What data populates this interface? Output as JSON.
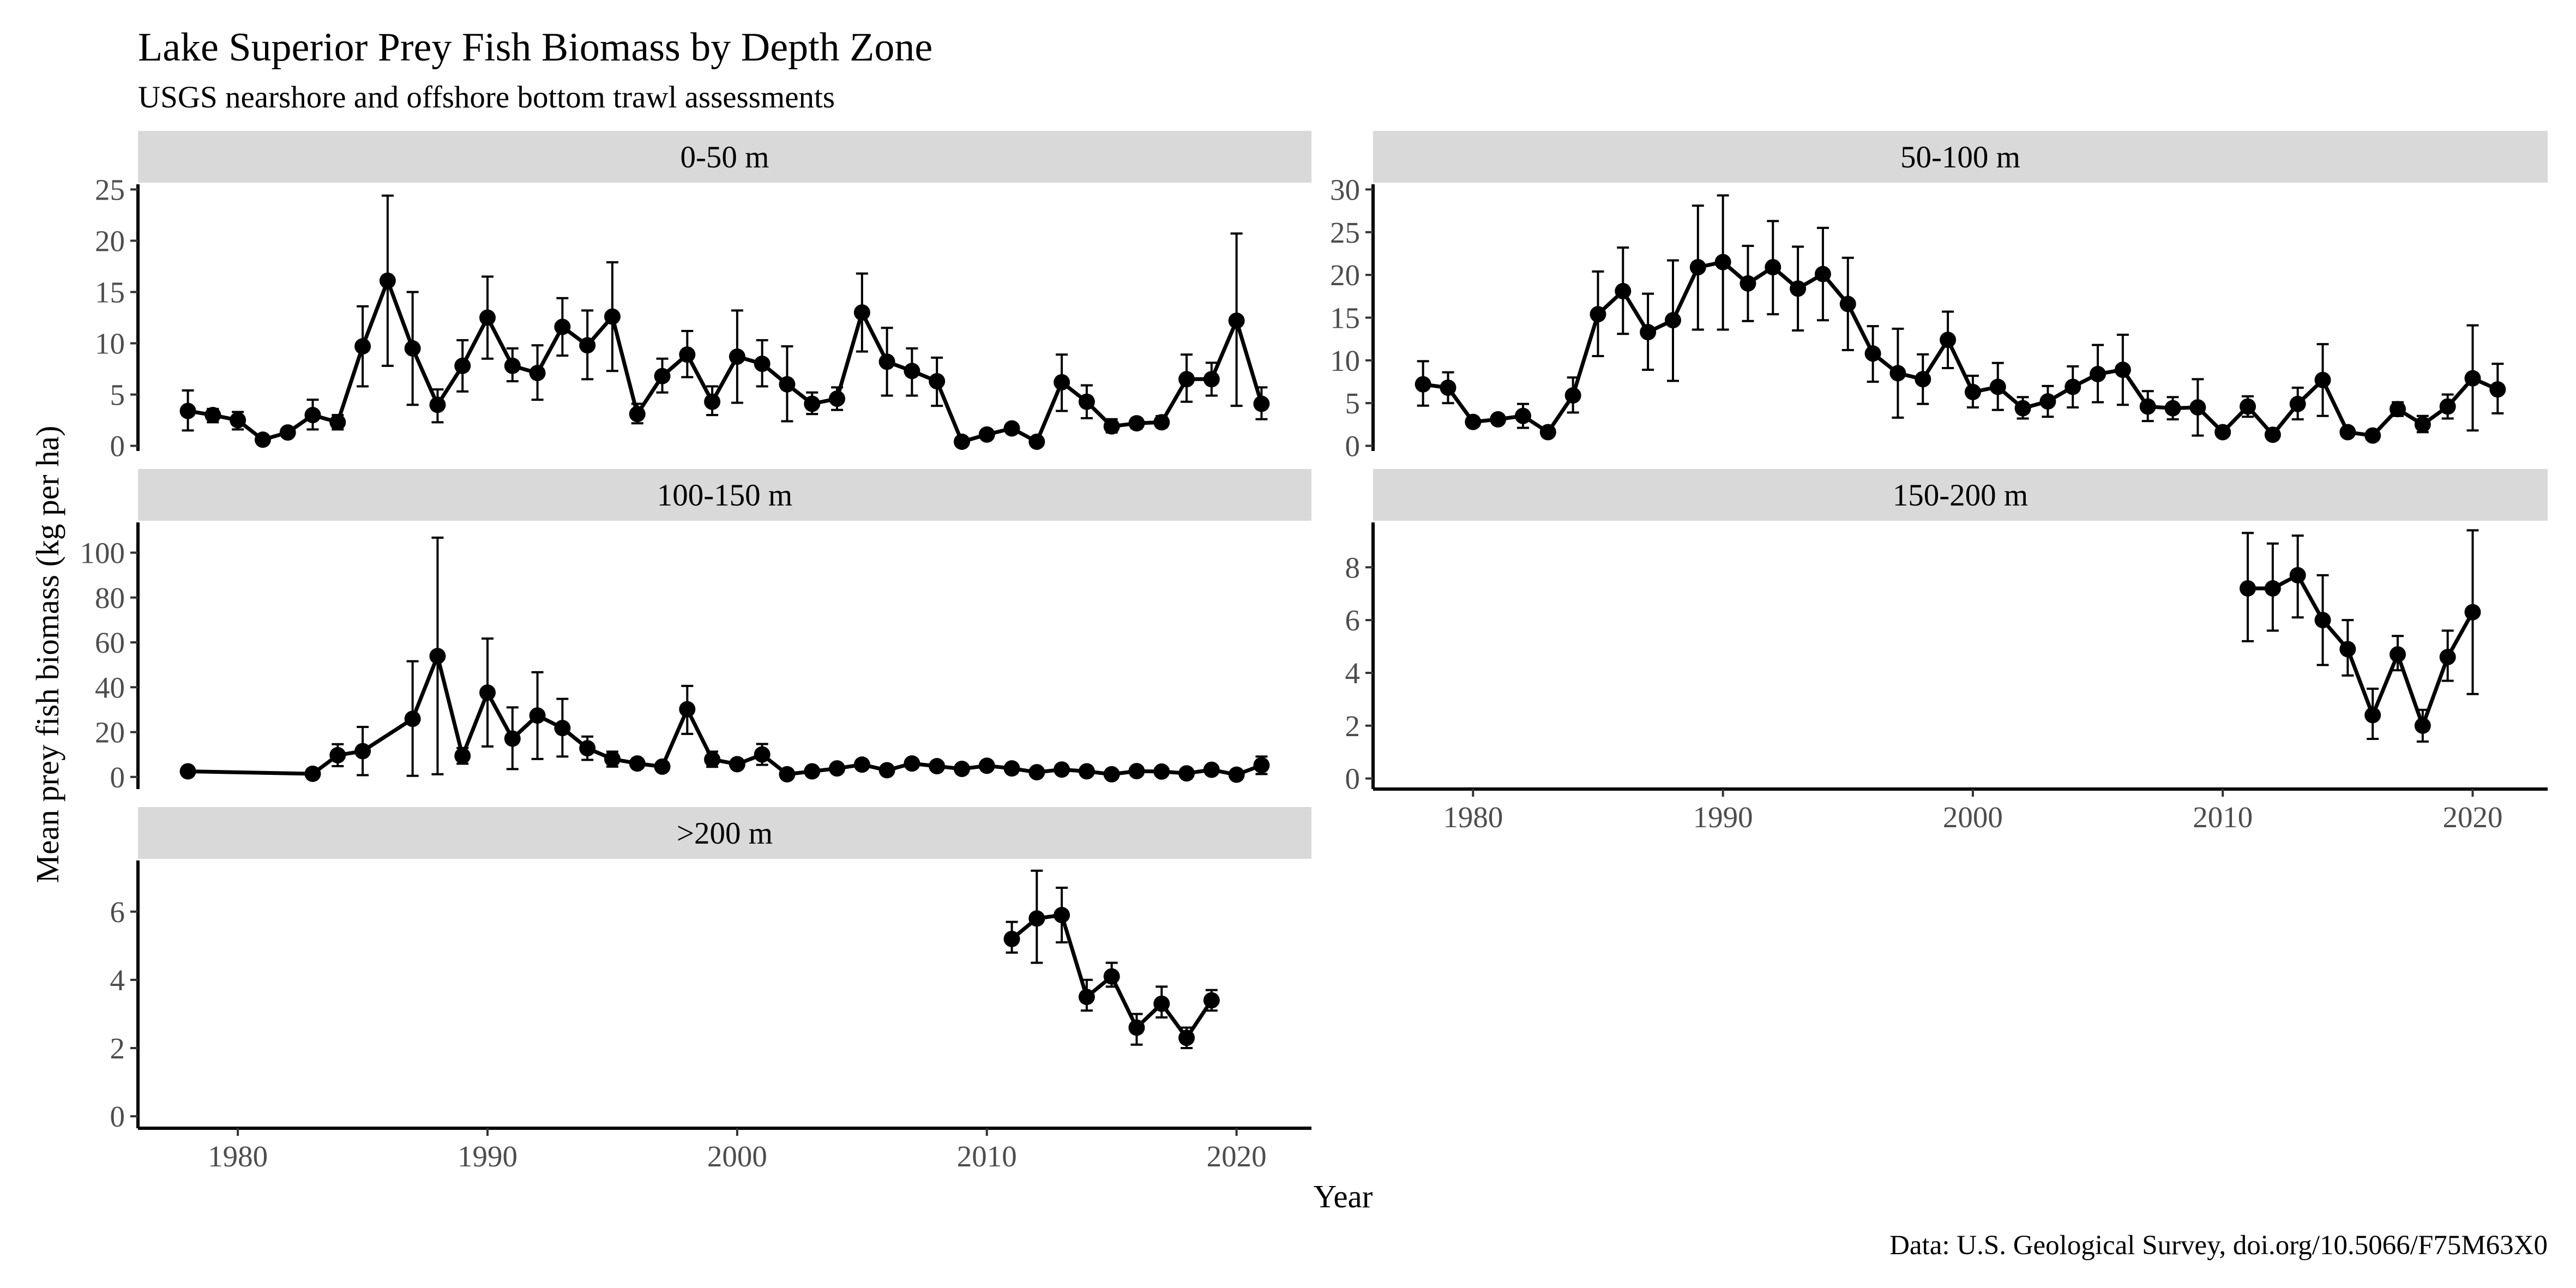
{
  "chart_data": {
    "type": "line",
    "title": "Lake Superior Prey Fish Biomass by Depth Zone",
    "subtitle": "USGS nearshore and offshore bottom trawl assessments",
    "xlabel": "Year",
    "ylabel": "Mean prey fish biomass (kg per ha)",
    "caption": "Data: U.S. Geological Survey, doi.org/10.5066/F75M63X0",
    "xlim": [
      1976,
      2023
    ],
    "x_ticks": [
      1980,
      1990,
      2000,
      2010,
      2020
    ],
    "legend": "none",
    "grid": false,
    "facets": [
      {
        "label": "0-50 m",
        "ylim": [
          -0.5,
          25.5
        ],
        "y_ticks": [
          0,
          5,
          10,
          15,
          20,
          25
        ],
        "points": [
          {
            "x": 1978,
            "y": 3.4,
            "lo": 1.5,
            "hi": 5.4
          },
          {
            "x": 1979,
            "y": 3.0,
            "lo": 2.3,
            "hi": 3.6
          },
          {
            "x": 1980,
            "y": 2.5,
            "lo": 1.6,
            "hi": 3.3
          },
          {
            "x": 1981,
            "y": 0.6
          },
          {
            "x": 1982,
            "y": 1.3
          },
          {
            "x": 1983,
            "y": 3.0,
            "lo": 1.6,
            "hi": 4.5
          },
          {
            "x": 1984,
            "y": 2.3,
            "lo": 1.6,
            "hi": 3.0
          },
          {
            "x": 1985,
            "y": 9.7,
            "lo": 5.8,
            "hi": 13.6
          },
          {
            "x": 1986,
            "y": 16.1,
            "lo": 7.8,
            "hi": 24.4
          },
          {
            "x": 1987,
            "y": 9.5,
            "lo": 4.0,
            "hi": 15.0
          },
          {
            "x": 1988,
            "y": 4.0,
            "lo": 2.3,
            "hi": 5.5
          },
          {
            "x": 1989,
            "y": 7.8,
            "lo": 5.3,
            "hi": 10.3
          },
          {
            "x": 1990,
            "y": 12.5,
            "lo": 8.5,
            "hi": 16.5
          },
          {
            "x": 1991,
            "y": 7.8,
            "lo": 6.3,
            "hi": 9.5
          },
          {
            "x": 1992,
            "y": 7.1,
            "lo": 4.5,
            "hi": 9.8
          },
          {
            "x": 1993,
            "y": 11.6,
            "lo": 8.8,
            "hi": 14.4
          },
          {
            "x": 1994,
            "y": 9.8,
            "lo": 6.5,
            "hi": 13.2
          },
          {
            "x": 1995,
            "y": 12.6,
            "lo": 7.3,
            "hi": 17.9
          },
          {
            "x": 1996,
            "y": 3.1,
            "lo": 2.2,
            "hi": 4.1
          },
          {
            "x": 1997,
            "y": 6.8,
            "lo": 5.2,
            "hi": 8.5
          },
          {
            "x": 1998,
            "y": 8.9,
            "lo": 6.7,
            "hi": 11.2
          },
          {
            "x": 1999,
            "y": 4.3,
            "lo": 3.0,
            "hi": 5.8
          },
          {
            "x": 2000,
            "y": 8.7,
            "lo": 4.2,
            "hi": 13.2
          },
          {
            "x": 2001,
            "y": 8.0,
            "lo": 5.8,
            "hi": 10.3
          },
          {
            "x": 2002,
            "y": 6.0,
            "lo": 2.4,
            "hi": 9.7
          },
          {
            "x": 2003,
            "y": 4.1,
            "lo": 3.1,
            "hi": 5.2
          },
          {
            "x": 2004,
            "y": 4.6,
            "lo": 3.5,
            "hi": 5.7
          },
          {
            "x": 2005,
            "y": 13.0,
            "lo": 9.2,
            "hi": 16.8
          },
          {
            "x": 2006,
            "y": 8.2,
            "lo": 4.9,
            "hi": 11.5
          },
          {
            "x": 2007,
            "y": 7.3,
            "lo": 4.9,
            "hi": 9.5
          },
          {
            "x": 2008,
            "y": 6.3,
            "lo": 3.9,
            "hi": 8.6
          },
          {
            "x": 2009,
            "y": 0.4
          },
          {
            "x": 2010,
            "y": 1.1
          },
          {
            "x": 2011,
            "y": 1.7
          },
          {
            "x": 2012,
            "y": 0.4
          },
          {
            "x": 2013,
            "y": 6.2,
            "lo": 3.4,
            "hi": 8.9
          },
          {
            "x": 2014,
            "y": 4.3,
            "lo": 2.7,
            "hi": 5.9
          },
          {
            "x": 2015,
            "y": 1.9,
            "lo": 1.3,
            "hi": 2.6
          },
          {
            "x": 2016,
            "y": 2.2,
            "lo": 1.7,
            "hi": 2.7
          },
          {
            "x": 2017,
            "y": 2.3,
            "lo": 1.8,
            "hi": 2.9
          },
          {
            "x": 2018,
            "y": 6.5,
            "lo": 4.3,
            "hi": 8.9
          },
          {
            "x": 2019,
            "y": 6.5,
            "lo": 4.9,
            "hi": 8.1
          },
          {
            "x": 2020,
            "y": 12.2,
            "lo": 3.9,
            "hi": 20.7
          },
          {
            "x": 2021,
            "y": 4.1,
            "lo": 2.6,
            "hi": 5.7
          }
        ]
      },
      {
        "label": "50-100 m",
        "ylim": [
          -0.6,
          30.6
        ],
        "y_ticks": [
          0,
          5,
          10,
          15,
          20,
          25,
          30
        ],
        "points": [
          {
            "x": 1978,
            "y": 7.2,
            "lo": 4.7,
            "hi": 9.9
          },
          {
            "x": 1979,
            "y": 6.8,
            "lo": 5.0,
            "hi": 8.6
          },
          {
            "x": 1980,
            "y": 2.8
          },
          {
            "x": 1981,
            "y": 3.1
          },
          {
            "x": 1982,
            "y": 3.5,
            "lo": 2.1,
            "hi": 4.9
          },
          {
            "x": 1983,
            "y": 1.6
          },
          {
            "x": 1984,
            "y": 5.9,
            "lo": 3.9,
            "hi": 8.0
          },
          {
            "x": 1985,
            "y": 15.4,
            "lo": 10.5,
            "hi": 20.4
          },
          {
            "x": 1986,
            "y": 18.1,
            "lo": 13.1,
            "hi": 23.2
          },
          {
            "x": 1987,
            "y": 13.3,
            "lo": 8.9,
            "hi": 17.8
          },
          {
            "x": 1988,
            "y": 14.7,
            "lo": 7.6,
            "hi": 21.7
          },
          {
            "x": 1989,
            "y": 20.9,
            "lo": 13.6,
            "hi": 28.1
          },
          {
            "x": 1990,
            "y": 21.5,
            "lo": 13.6,
            "hi": 29.3
          },
          {
            "x": 1991,
            "y": 19.0,
            "lo": 14.6,
            "hi": 23.4
          },
          {
            "x": 1992,
            "y": 20.9,
            "lo": 15.4,
            "hi": 26.3
          },
          {
            "x": 1993,
            "y": 18.4,
            "lo": 13.5,
            "hi": 23.3
          },
          {
            "x": 1994,
            "y": 20.1,
            "lo": 14.7,
            "hi": 25.5
          },
          {
            "x": 1995,
            "y": 16.6,
            "lo": 11.2,
            "hi": 22.0
          },
          {
            "x": 1996,
            "y": 10.8,
            "lo": 7.5,
            "hi": 14.0
          },
          {
            "x": 1997,
            "y": 8.5,
            "lo": 3.3,
            "hi": 13.7
          },
          {
            "x": 1998,
            "y": 7.8,
            "lo": 4.9,
            "hi": 10.7
          },
          {
            "x": 1999,
            "y": 12.4,
            "lo": 9.1,
            "hi": 15.7
          },
          {
            "x": 2000,
            "y": 6.3,
            "lo": 4.5,
            "hi": 8.2
          },
          {
            "x": 2001,
            "y": 6.9,
            "lo": 4.2,
            "hi": 9.7
          },
          {
            "x": 2002,
            "y": 4.4,
            "lo": 3.2,
            "hi": 5.7
          },
          {
            "x": 2003,
            "y": 5.2,
            "lo": 3.4,
            "hi": 7.0
          },
          {
            "x": 2004,
            "y": 6.9,
            "lo": 4.5,
            "hi": 9.3
          },
          {
            "x": 2005,
            "y": 8.4,
            "lo": 5.1,
            "hi": 11.8
          },
          {
            "x": 2006,
            "y": 8.9,
            "lo": 4.8,
            "hi": 13.0
          },
          {
            "x": 2007,
            "y": 4.6,
            "lo": 2.9,
            "hi": 6.4
          },
          {
            "x": 2008,
            "y": 4.4,
            "lo": 3.1,
            "hi": 5.7
          },
          {
            "x": 2009,
            "y": 4.5,
            "lo": 1.2,
            "hi": 7.8
          },
          {
            "x": 2010,
            "y": 1.6
          },
          {
            "x": 2011,
            "y": 4.6,
            "lo": 3.4,
            "hi": 5.8
          },
          {
            "x": 2012,
            "y": 1.3
          },
          {
            "x": 2013,
            "y": 4.9,
            "lo": 3.1,
            "hi": 6.8
          },
          {
            "x": 2014,
            "y": 7.7,
            "lo": 3.5,
            "hi": 11.9
          },
          {
            "x": 2015,
            "y": 1.6
          },
          {
            "x": 2016,
            "y": 1.2
          },
          {
            "x": 2017,
            "y": 4.3,
            "lo": 3.5,
            "hi": 5.1
          },
          {
            "x": 2018,
            "y": 2.5,
            "lo": 1.6,
            "hi": 3.5
          },
          {
            "x": 2019,
            "y": 4.6,
            "lo": 3.2,
            "hi": 6.0
          },
          {
            "x": 2020,
            "y": 7.9,
            "lo": 1.8,
            "hi": 14.1
          },
          {
            "x": 2021,
            "y": 6.6,
            "lo": 3.8,
            "hi": 9.6
          }
        ]
      },
      {
        "label": "100-150 m",
        "ylim": [
          -5.4,
          113.5
        ],
        "y_ticks": [
          0,
          20,
          40,
          60,
          80,
          100
        ],
        "points": [
          {
            "x": 1978,
            "y": 2.5
          },
          {
            "x": 1983,
            "y": 1.4
          },
          {
            "x": 1984,
            "y": 9.7,
            "lo": 4.8,
            "hi": 14.6
          },
          {
            "x": 1985,
            "y": 11.5,
            "lo": 0.8,
            "hi": 22.3
          },
          {
            "x": 1987,
            "y": 25.9,
            "lo": 0.5,
            "hi": 51.6
          },
          {
            "x": 1988,
            "y": 53.9,
            "lo": 1.2,
            "hi": 106.7
          },
          {
            "x": 1989,
            "y": 9.4,
            "lo": 5.9,
            "hi": 12.9
          },
          {
            "x": 1990,
            "y": 37.6,
            "lo": 13.6,
            "hi": 61.7
          },
          {
            "x": 1991,
            "y": 17.1,
            "lo": 3.5,
            "hi": 31.0
          },
          {
            "x": 1992,
            "y": 27.4,
            "lo": 8.0,
            "hi": 46.7
          },
          {
            "x": 1993,
            "y": 21.8,
            "lo": 9.1,
            "hi": 34.8
          },
          {
            "x": 1994,
            "y": 12.8,
            "lo": 7.6,
            "hi": 18.0
          },
          {
            "x": 1995,
            "y": 8.0,
            "lo": 4.6,
            "hi": 11.3
          },
          {
            "x": 1996,
            "y": 6.0
          },
          {
            "x": 1997,
            "y": 4.6
          },
          {
            "x": 1998,
            "y": 30.2,
            "lo": 19.2,
            "hi": 40.6
          },
          {
            "x": 1999,
            "y": 7.8,
            "lo": 4.5,
            "hi": 11.3
          },
          {
            "x": 2000,
            "y": 5.7
          },
          {
            "x": 2001,
            "y": 10.0,
            "lo": 5.4,
            "hi": 14.7
          },
          {
            "x": 2002,
            "y": 1.2
          },
          {
            "x": 2003,
            "y": 2.5
          },
          {
            "x": 2004,
            "y": 3.8
          },
          {
            "x": 2005,
            "y": 5.5
          },
          {
            "x": 2006,
            "y": 3.0
          },
          {
            "x": 2007,
            "y": 6.0
          },
          {
            "x": 2008,
            "y": 4.8
          },
          {
            "x": 2009,
            "y": 3.6
          },
          {
            "x": 2010,
            "y": 5.0
          },
          {
            "x": 2011,
            "y": 3.8
          },
          {
            "x": 2012,
            "y": 2.1
          },
          {
            "x": 2013,
            "y": 3.3
          },
          {
            "x": 2014,
            "y": 2.5
          },
          {
            "x": 2015,
            "y": 1.2
          },
          {
            "x": 2016,
            "y": 2.6
          },
          {
            "x": 2017,
            "y": 2.4
          },
          {
            "x": 2018,
            "y": 1.6
          },
          {
            "x": 2019,
            "y": 3.2
          },
          {
            "x": 2020,
            "y": 1.0
          },
          {
            "x": 2021,
            "y": 5.2,
            "lo": 1.3,
            "hi": 9.1
          }
        ]
      },
      {
        "label": "150-200 m",
        "ylim": [
          -0.4,
          9.7
        ],
        "y_ticks": [
          0,
          2,
          4,
          6,
          8
        ],
        "points": [
          {
            "x": 2011,
            "y": 7.2,
            "lo": 5.2,
            "hi": 9.3
          },
          {
            "x": 2012,
            "y": 7.2,
            "lo": 5.6,
            "hi": 8.9
          },
          {
            "x": 2013,
            "y": 7.7,
            "lo": 6.1,
            "hi": 9.2
          },
          {
            "x": 2014,
            "y": 6.0,
            "lo": 4.3,
            "hi": 7.7
          },
          {
            "x": 2015,
            "y": 4.9,
            "lo": 3.9,
            "hi": 6.0
          },
          {
            "x": 2016,
            "y": 2.4,
            "lo": 1.5,
            "hi": 3.4
          },
          {
            "x": 2017,
            "y": 4.7,
            "lo": 4.1,
            "hi": 5.4
          },
          {
            "x": 2018,
            "y": 2.0,
            "lo": 1.4,
            "hi": 2.6
          },
          {
            "x": 2019,
            "y": 4.6,
            "lo": 3.7,
            "hi": 5.6
          },
          {
            "x": 2020,
            "y": 6.3,
            "lo": 3.2,
            "hi": 9.4
          }
        ]
      },
      {
        "label": ">200 m",
        "ylim": [
          -0.35,
          7.5
        ],
        "y_ticks": [
          0,
          2,
          4,
          6
        ],
        "points": [
          {
            "x": 2011,
            "y": 5.2,
            "lo": 4.8,
            "hi": 5.7
          },
          {
            "x": 2012,
            "y": 5.8,
            "lo": 4.5,
            "hi": 7.2
          },
          {
            "x": 2013,
            "y": 5.9,
            "lo": 5.1,
            "hi": 6.7
          },
          {
            "x": 2014,
            "y": 3.5,
            "lo": 3.1,
            "hi": 4.0
          },
          {
            "x": 2015,
            "y": 4.1,
            "lo": 3.8,
            "hi": 4.5
          },
          {
            "x": 2016,
            "y": 2.6,
            "lo": 2.1,
            "hi": 3.0
          },
          {
            "x": 2017,
            "y": 3.3,
            "lo": 2.9,
            "hi": 3.8
          },
          {
            "x": 2018,
            "y": 2.3,
            "lo": 2.0,
            "hi": 2.6
          },
          {
            "x": 2019,
            "y": 3.4,
            "lo": 3.1,
            "hi": 3.7
          }
        ]
      }
    ]
  }
}
